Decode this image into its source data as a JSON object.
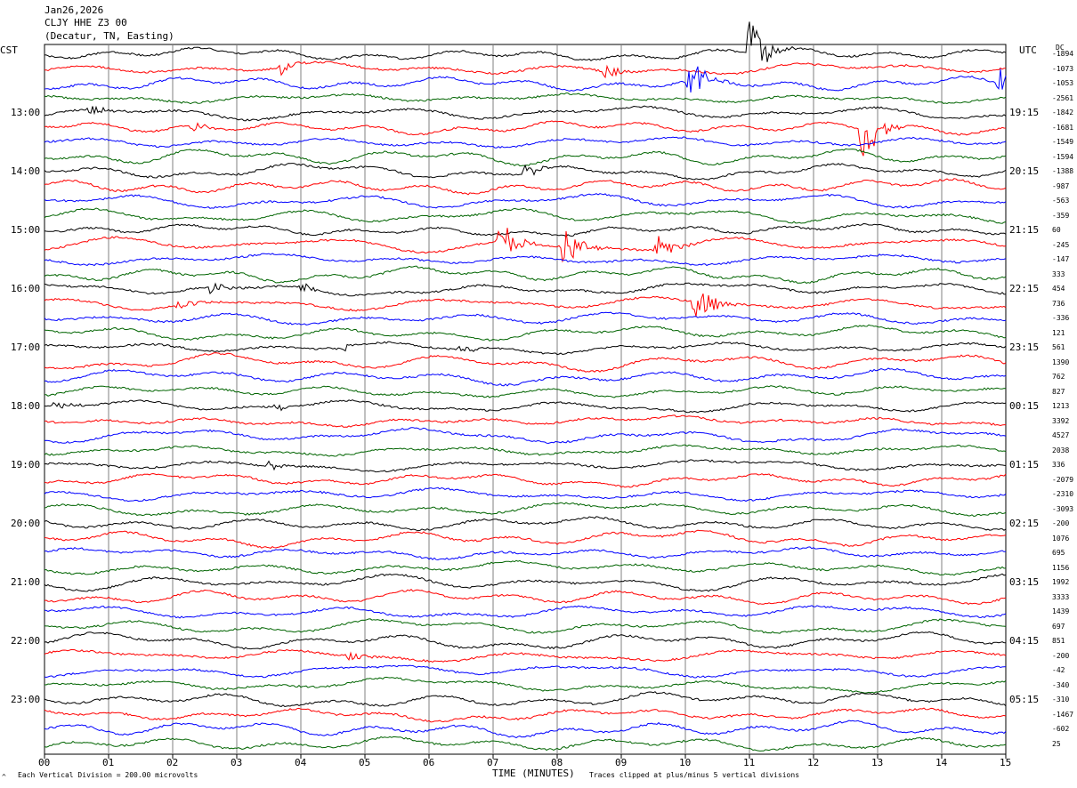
{
  "header": {
    "date": "Jan26,2026",
    "station": "CLJY HHE Z3 00",
    "location": "(Decatur, TN, Easting)"
  },
  "left_axis_label": "CST",
  "right_axis_label": "UTC",
  "dc_label": "DC",
  "footer": {
    "scale_mark": "^",
    "scale_note": "Each Vertical Division =  200.00 microvolts",
    "xlabel": "TIME (MINUTES)",
    "clip_note": "Traces clipped at plus/minus 5 vertical divisions"
  },
  "colors": {
    "trace_cycle": [
      "#000000",
      "#ff0000",
      "#0000ff",
      "#006400"
    ],
    "grid": "#808080"
  },
  "chart_data": {
    "type": "line",
    "x_unit": "minutes",
    "xlim": [
      0,
      15
    ],
    "x_ticks": [
      "00",
      "01",
      "02",
      "03",
      "04",
      "05",
      "06",
      "07",
      "08",
      "09",
      "10",
      "11",
      "12",
      "13",
      "14",
      "15"
    ],
    "trace_count": 48,
    "trace_interval_minutes": 15,
    "left_time_labels": [
      {
        "label": "13:00",
        "trace": 4
      },
      {
        "label": "14:00",
        "trace": 8
      },
      {
        "label": "15:00",
        "trace": 12
      },
      {
        "label": "16:00",
        "trace": 16
      },
      {
        "label": "17:00",
        "trace": 20
      },
      {
        "label": "18:00",
        "trace": 24
      },
      {
        "label": "19:00",
        "trace": 28
      },
      {
        "label": "20:00",
        "trace": 32
      },
      {
        "label": "21:00",
        "trace": 36
      },
      {
        "label": "22:00",
        "trace": 40
      },
      {
        "label": "23:00",
        "trace": 44
      }
    ],
    "right_time_labels": [
      {
        "label": "19:15",
        "trace": 4
      },
      {
        "label": "20:15",
        "trace": 8
      },
      {
        "label": "21:15",
        "trace": 12
      },
      {
        "label": "22:15",
        "trace": 16
      },
      {
        "label": "23:15",
        "trace": 20
      },
      {
        "label": "00:15",
        "trace": 24
      },
      {
        "label": "01:15",
        "trace": 28
      },
      {
        "label": "02:15",
        "trace": 32
      },
      {
        "label": "03:15",
        "trace": 36
      },
      {
        "label": "04:15",
        "trace": 40
      },
      {
        "label": "05:15",
        "trace": 44
      }
    ],
    "dc_offsets": [
      "-1894",
      "-1073",
      "-1053",
      "-2561",
      "-1842",
      "-1681",
      "-1549",
      "-1594",
      "-1388",
      "-987",
      "-563",
      "-359",
      "60",
      "-245",
      "-147",
      "333",
      "454",
      "736",
      "-336",
      "121",
      "561",
      "1390",
      "762",
      "827",
      "1213",
      "3392",
      "4527",
      "2038",
      "336",
      "-2079",
      "-2310",
      "-3093",
      "-200",
      "1076",
      "695",
      "1156",
      "1992",
      "3333",
      "1439",
      "697",
      "851",
      "-200",
      "-42",
      "-340",
      "-310",
      "-1467",
      "-602",
      "25"
    ],
    "events": [
      {
        "trace": 0,
        "minute": 11.0,
        "amplitude": 5
      },
      {
        "trace": 1,
        "minute": 3.7,
        "amplitude": 1
      },
      {
        "trace": 1,
        "minute": 8.75,
        "amplitude": 1
      },
      {
        "trace": 2,
        "minute": 10.05,
        "amplitude": 3
      },
      {
        "trace": 2,
        "minute": 14.9,
        "amplitude": 2
      },
      {
        "trace": 4,
        "minute": 0.7,
        "amplitude": 0.6
      },
      {
        "trace": 5,
        "minute": 12.75,
        "amplitude": 5
      },
      {
        "trace": 5,
        "minute": 2.3,
        "amplitude": 0.8
      },
      {
        "trace": 8,
        "minute": 7.5,
        "amplitude": 1
      },
      {
        "trace": 13,
        "minute": 7.1,
        "amplitude": 3
      },
      {
        "trace": 13,
        "minute": 8.1,
        "amplitude": 3
      },
      {
        "trace": 13,
        "minute": 9.55,
        "amplitude": 2
      },
      {
        "trace": 16,
        "minute": 2.6,
        "amplitude": 1
      },
      {
        "trace": 16,
        "minute": 4.0,
        "amplitude": 0.6
      },
      {
        "trace": 17,
        "minute": 10.15,
        "amplitude": 3
      },
      {
        "trace": 17,
        "minute": 2.1,
        "amplitude": 0.8
      },
      {
        "trace": 20,
        "minute": 4.6,
        "amplitude": 0.6
      },
      {
        "trace": 20,
        "minute": 6.5,
        "amplitude": 0.8
      },
      {
        "trace": 24,
        "minute": 0.15,
        "amplitude": 0.7
      },
      {
        "trace": 24,
        "minute": 3.6,
        "amplitude": 0.5
      },
      {
        "trace": 28,
        "minute": 3.5,
        "amplitude": 0.6
      },
      {
        "trace": 41,
        "minute": 4.7,
        "amplitude": 0.6
      }
    ]
  }
}
